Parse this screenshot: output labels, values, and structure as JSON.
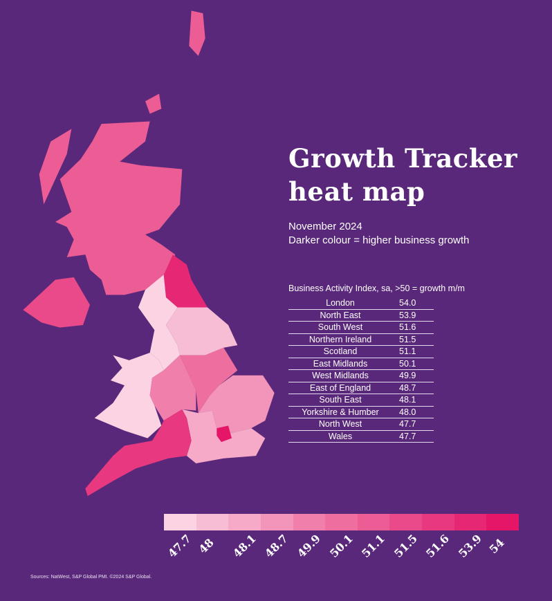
{
  "title_line1": "Growth Tracker",
  "title_line2": "heat map",
  "date": "November 2024",
  "note": "Darker colour = higher business growth",
  "table_heading": "Business Activity Index, sa, >50 = growth m/m",
  "regions": [
    {
      "name": "London",
      "value": "54.0"
    },
    {
      "name": "North East",
      "value": "53.9"
    },
    {
      "name": "South West",
      "value": "51.6"
    },
    {
      "name": "Northern Ireland",
      "value": "51.5"
    },
    {
      "name": "Scotland",
      "value": "51.1"
    },
    {
      "name": "East Midlands",
      "value": "50.1"
    },
    {
      "name": "West Midlands",
      "value": "49.9"
    },
    {
      "name": "East of England",
      "value": "48.7"
    },
    {
      "name": "South East",
      "value": "48.1"
    },
    {
      "name": "Yorkshire & Humber",
      "value": "48.0"
    },
    {
      "name": "North West",
      "value": "47.7"
    },
    {
      "name": "Wales",
      "value": "47.7"
    }
  ],
  "legend": {
    "labels": [
      "47.7",
      "48",
      "48.1",
      "48.7",
      "49.9",
      "50.1",
      "51.1",
      "51.5",
      "51.6",
      "53.9",
      "54"
    ],
    "colors": [
      "#fbd3e3",
      "#f7bdd4",
      "#f6aac8",
      "#f394bb",
      "#f080ab",
      "#ee6ea0",
      "#ec5c95",
      "#ea4a8a",
      "#e8387f",
      "#e62874",
      "#e51667"
    ]
  },
  "colors": {
    "background": "#5a287a"
  },
  "source": "Sources: NatWest, S&P Global PMI. ©2024 S&P Global."
}
